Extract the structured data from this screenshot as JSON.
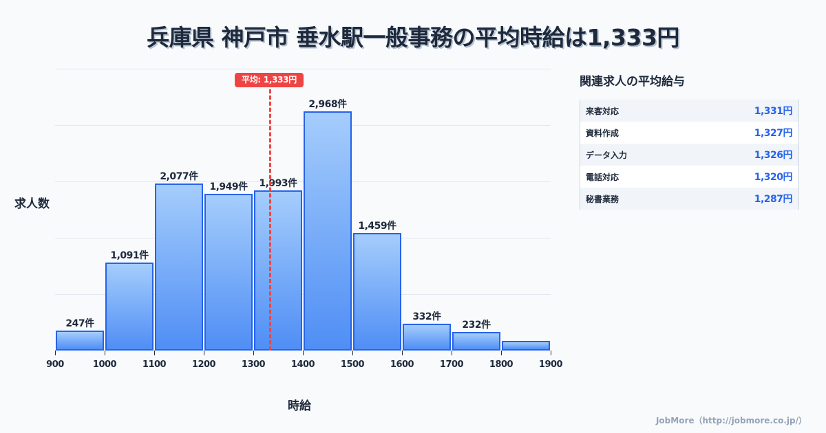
{
  "title": "兵庫県 神戸市 垂水駅一般事務の平均時給は1,333円",
  "chart_data": {
    "type": "bar",
    "title": "兵庫県 神戸市 垂水駅一般事務の平均時給は1,333円",
    "xlabel": "時給",
    "ylabel": "求人数",
    "bins": [
      [
        900,
        1000
      ],
      [
        1000,
        1100
      ],
      [
        1100,
        1200
      ],
      [
        1200,
        1300
      ],
      [
        1300,
        1400
      ],
      [
        1400,
        1500
      ],
      [
        1500,
        1600
      ],
      [
        1600,
        1700
      ],
      [
        1700,
        1800
      ],
      [
        1800,
        1900
      ]
    ],
    "categories": [
      "900-1000",
      "1000-1100",
      "1100-1200",
      "1200-1300",
      "1300-1400",
      "1400-1500",
      "1500-1600",
      "1600-1700",
      "1700-1800",
      "1800-1900"
    ],
    "values": [
      247,
      1091,
      2077,
      1949,
      1993,
      2968,
      1459,
      332,
      232,
      120
    ],
    "value_labels": [
      "247件",
      "1,091件",
      "2,077件",
      "1,949件",
      "1,993件",
      "2,968件",
      "1,459件",
      "332件",
      "232件",
      ""
    ],
    "x_ticks": [
      "900",
      "1000",
      "1100",
      "1200",
      "1300",
      "1400",
      "1500",
      "1600",
      "1700",
      "1800",
      "1900"
    ],
    "ylim": [
      0,
      3500
    ],
    "grid": true,
    "annotations": [
      {
        "type": "vline",
        "x": 1333,
        "label": "平均: 1,333円",
        "color": "#ef4444"
      }
    ],
    "bar_color": "#2563eb"
  },
  "avg_badge": "平均: 1,333円",
  "axis": {
    "ylabel": "求人数",
    "xlabel": "時給"
  },
  "side": {
    "title": "関連求人の平均給与",
    "rows": [
      {
        "name": "来客対応",
        "value": "1,331円"
      },
      {
        "name": "資料作成",
        "value": "1,327円"
      },
      {
        "name": "データ入力",
        "value": "1,326円"
      },
      {
        "name": "電話対応",
        "value": "1,320円"
      },
      {
        "name": "秘書業務",
        "value": "1,287円"
      }
    ]
  },
  "footer": "JobMore（http://jobmore.co.jp/）"
}
